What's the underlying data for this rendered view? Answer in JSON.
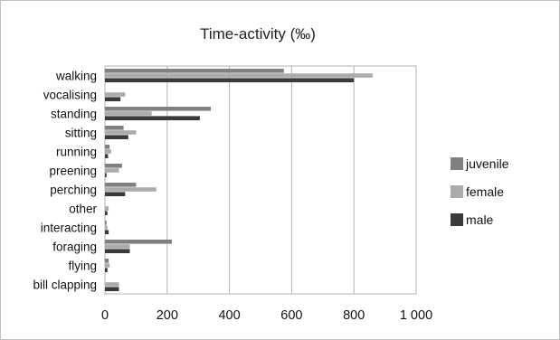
{
  "chart_data": {
    "type": "bar",
    "orientation": "horizontal",
    "title": "Time-activity (‰)",
    "xlabel": "",
    "ylabel": "",
    "xlim": [
      0,
      1000
    ],
    "ticks": [
      {
        "value": 0,
        "label": "0"
      },
      {
        "value": 200,
        "label": "200"
      },
      {
        "value": 400,
        "label": "400"
      },
      {
        "value": 600,
        "label": "600"
      },
      {
        "value": 800,
        "label": "800"
      },
      {
        "value": 1000,
        "label": "1 000"
      }
    ],
    "grid": "vertical",
    "legend": "right",
    "categories": [
      "walking",
      "vocalising",
      "standing",
      "sitting",
      "running",
      "preening",
      "perching",
      "other",
      "interacting",
      "foraging",
      "flying",
      "bill clapping"
    ],
    "series": [
      {
        "name": "juvenile",
        "color": "#808080",
        "values": [
          575,
          0,
          340,
          60,
          15,
          55,
          100,
          0,
          5,
          215,
          12,
          0
        ]
      },
      {
        "name": "female",
        "color": "#ababab",
        "values": [
          860,
          65,
          150,
          100,
          20,
          45,
          165,
          12,
          8,
          80,
          15,
          45
        ]
      },
      {
        "name": "male",
        "color": "#3a3a3a",
        "values": [
          800,
          50,
          305,
          75,
          10,
          5,
          65,
          8,
          12,
          80,
          8,
          45
        ]
      }
    ]
  }
}
